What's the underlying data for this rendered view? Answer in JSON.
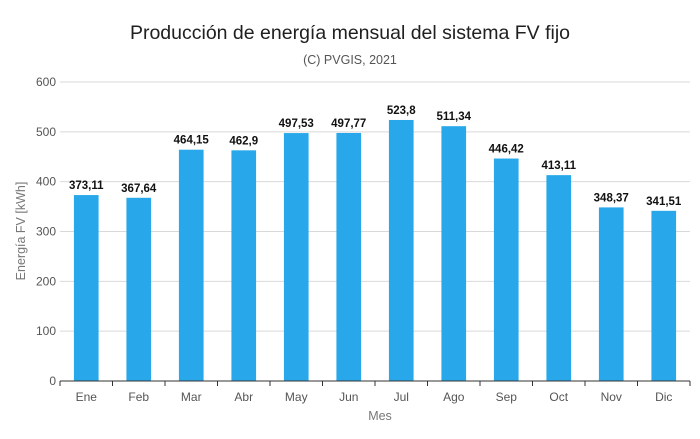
{
  "title": "Producción de energía mensual del sistema FV fijo",
  "subtitle": "(C) PVGIS, 2021",
  "chart_data": {
    "type": "bar",
    "title": "Producción de energía mensual del sistema FV fijo",
    "subtitle": "(C) PVGIS, 2021",
    "xlabel": "Mes",
    "ylabel": "Energía FV [kWh]",
    "categories": [
      "Ene",
      "Feb",
      "Mar",
      "Abr",
      "May",
      "Jun",
      "Jul",
      "Ago",
      "Sep",
      "Oct",
      "Nov",
      "Dic"
    ],
    "values": [
      373.11,
      367.64,
      464.15,
      462.9,
      497.53,
      497.77,
      523.8,
      511.34,
      446.42,
      413.11,
      348.37,
      341.51
    ],
    "data_labels": [
      "373,11",
      "367,64",
      "464,15",
      "462,9",
      "497,53",
      "497,77",
      "523,8",
      "511,34",
      "446,42",
      "413,11",
      "348,37",
      "341,51"
    ],
    "yticks": [
      "0",
      "100",
      "200",
      "300",
      "400",
      "500",
      "600"
    ],
    "ylim": [
      0,
      600
    ],
    "grid": true,
    "bar_color": "#28a8ea"
  }
}
